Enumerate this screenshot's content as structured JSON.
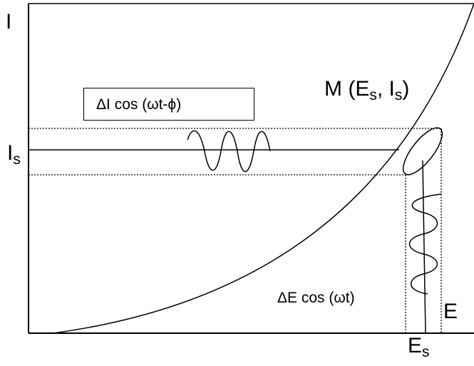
{
  "labels": {
    "y_axis": "I",
    "is_main": "I",
    "is_sub": "s",
    "point_prefix": "M (E",
    "point_e_sub": "s",
    "point_sep": ", I",
    "point_i_sub": "s",
    "point_suffix": ")",
    "delta_i": "ΔI cos (ωt-ϕ)",
    "delta_e": "ΔE cos (ωt)",
    "e_axis": "E",
    "es_main": "E",
    "es_sub": "s"
  }
}
